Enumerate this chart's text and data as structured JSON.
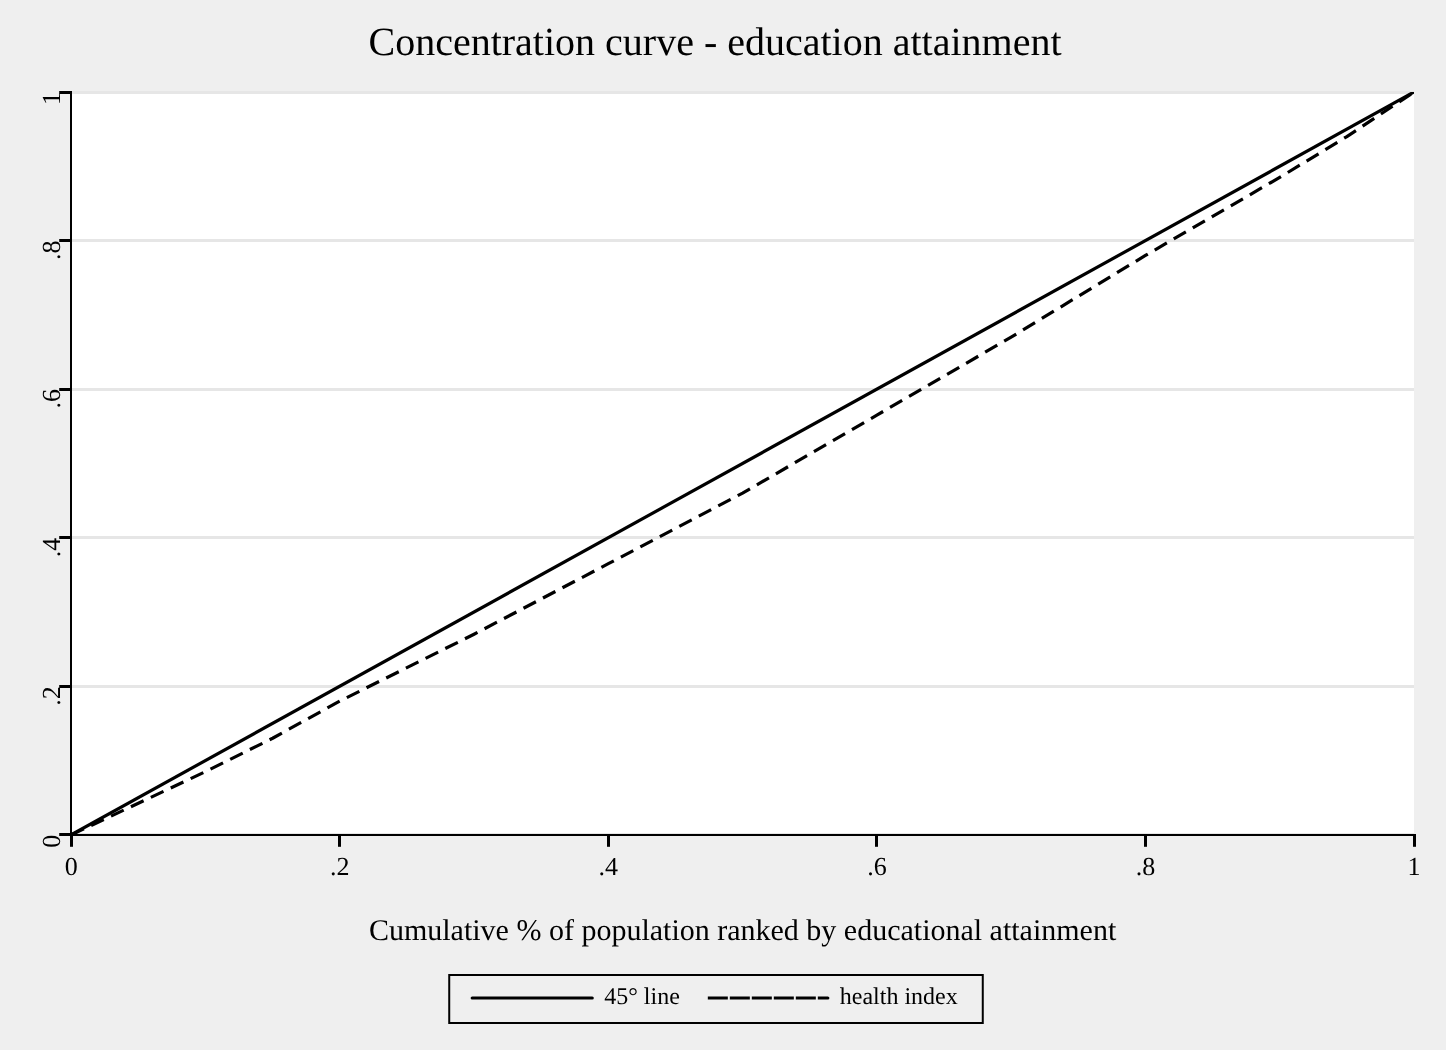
{
  "chart_data": {
    "type": "line",
    "title": "Concentration curve - education attainment",
    "xlabel": "Cumulative % of population ranked by educational attainment",
    "xlim": [
      0,
      1
    ],
    "xticks": [
      0,
      {
        "value": 0.2,
        "label": ".2"
      },
      {
        "value": 0.4,
        "label": ".4"
      },
      {
        "value": 0.6,
        "label": ".6"
      },
      {
        "value": 0.8,
        "label": ".8"
      },
      1
    ],
    "ylim": [
      0,
      1
    ],
    "yticks": [
      0,
      {
        "value": 0.2,
        "label": ".2"
      },
      {
        "value": 0.4,
        "label": ".4"
      },
      {
        "value": 0.6,
        "label": ".6"
      },
      {
        "value": 0.8,
        "label": ".8"
      },
      1
    ],
    "grid": "y",
    "legend": "bottom",
    "marker": "none",
    "series": [
      {
        "name": "45° line",
        "color": "#000000",
        "line_style": "solid",
        "x": [
          0,
          1
        ],
        "values": [
          0,
          1
        ]
      },
      {
        "name": "health index",
        "color": "#000000",
        "line_style": "dashed",
        "x": [
          0,
          0.1,
          0.15,
          0.2,
          0.3,
          0.4,
          0.5,
          0.6,
          0.7,
          0.8,
          0.9,
          0.95,
          1
        ],
        "values": [
          0,
          0.085,
          0.13,
          0.18,
          0.27,
          0.365,
          0.46,
          0.565,
          0.67,
          0.78,
          0.885,
          0.94,
          1
        ]
      }
    ]
  }
}
